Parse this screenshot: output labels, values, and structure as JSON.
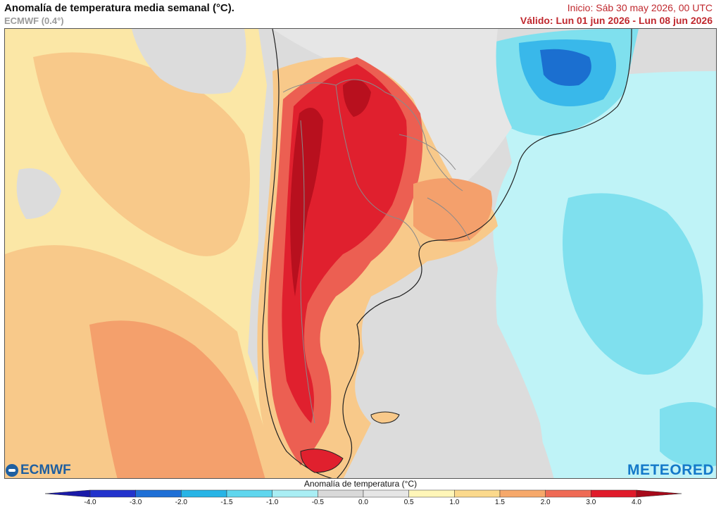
{
  "header": {
    "title": "Anomalía de temperatura media semanal (°C).",
    "model": "ECMWF (0.4°)",
    "init": "Inicio: Sáb 30 may 2026, 00 UTC",
    "valid": "Válido: Lun 01 jun 2026 - Lun 08 jun 2026"
  },
  "logos": {
    "ecmwf": "ECMWF",
    "meteored": "METEORED"
  },
  "colorbar": {
    "title": "Anomalía de temperatura (°C)",
    "ticks": [
      "-4.0",
      "-3.0",
      "-2.0",
      "-1.5",
      "-1.0",
      "-0.5",
      "0.0",
      "0.5",
      "1.0",
      "1.5",
      "2.0",
      "3.0",
      "4.0"
    ],
    "colors": [
      "#2233cc",
      "#1e6fd6",
      "#27b4e6",
      "#5fd6ee",
      "#a9eef4",
      "#d9d9d9",
      "#e6e6e6",
      "#fff6b8",
      "#fbd98c",
      "#f6a86a",
      "#ef6a55",
      "#e01a2a"
    ],
    "under_color": "#1a1aa8",
    "over_color": "#a60a1a"
  },
  "map": {
    "region": "South America (southern cone)",
    "colors": {
      "sea_neutral": "#dcdcdc",
      "warm_light": "#fbe7a6",
      "warm": "#f8c98a",
      "warm_mid": "#f4a06c",
      "hot": "#ec5f52",
      "very_hot": "#e0202e",
      "extreme": "#b8101e",
      "cool_light": "#bff3f7",
      "cool": "#7fe0ee",
      "cold": "#39b8ea",
      "very_cold": "#1b6fd0",
      "border": "#8a8a8a",
      "coast": "#222222"
    }
  }
}
